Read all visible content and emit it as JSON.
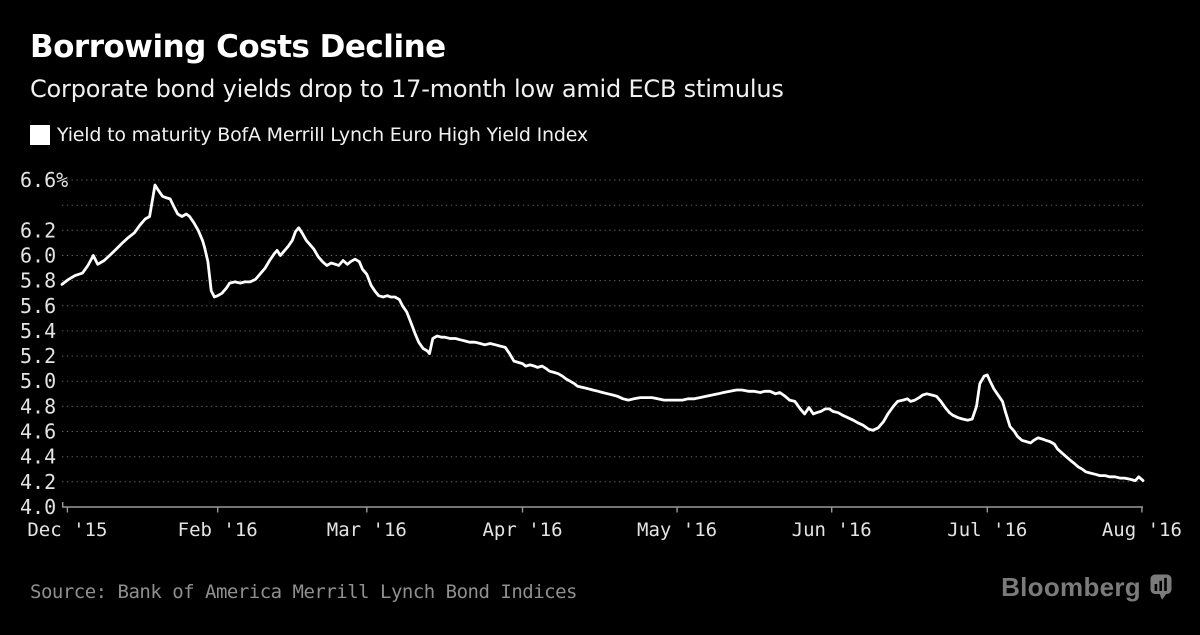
{
  "colors": {
    "background": "#000000",
    "line": "#ffffff",
    "gridline": "#5e5e5e",
    "axis": "#98999b",
    "tick_label": "#e3e3e3",
    "title": "#ffffff",
    "subtitle": "#f1f1f1",
    "legend_swatch": "#ffffff",
    "source_text": "#8f8f8f",
    "brand": "#7b7b7b"
  },
  "brand": {
    "name": "Bloomberg"
  },
  "chart_data": {
    "type": "line",
    "title": "Borrowing Costs Decline",
    "subtitle": "Corporate bond yields drop to 17-month low amid ECB stimulus",
    "legend_label": "Yield to maturity BofA Merrill Lynch Euro High Yield Index",
    "source": "Source: Bank of America Merrill Lynch Bond Indices",
    "unit": "%",
    "ylim": [
      4.0,
      6.6
    ],
    "grid": "dotted-horizontal",
    "legend_position": "top-left",
    "y_gridlines": [
      6.6,
      6.4,
      6.2,
      6.0,
      5.8,
      5.6,
      5.4,
      5.2,
      5.0,
      4.8,
      4.6,
      4.4,
      4.2
    ],
    "baseline": 4.0,
    "y_ticks": [
      {
        "v": 6.6,
        "label": "6.6%"
      },
      {
        "v": 6.2,
        "label": "6.2"
      },
      {
        "v": 6.0,
        "label": "6.0"
      },
      {
        "v": 5.8,
        "label": "5.8"
      },
      {
        "v": 5.6,
        "label": "5.6"
      },
      {
        "v": 5.4,
        "label": "5.4"
      },
      {
        "v": 5.2,
        "label": "5.2"
      },
      {
        "v": 5.0,
        "label": "5.0"
      },
      {
        "v": 4.8,
        "label": "4.8"
      },
      {
        "v": 4.6,
        "label": "4.6"
      },
      {
        "v": 4.4,
        "label": "4.4"
      },
      {
        "v": 4.2,
        "label": "4.2"
      },
      {
        "v": 4.0,
        "label": "4.0"
      }
    ],
    "x_ticks": [
      {
        "f": 0.005,
        "label": "Dec '15"
      },
      {
        "f": 0.144,
        "label": "Feb '16"
      },
      {
        "f": 0.282,
        "label": "Mar '16"
      },
      {
        "f": 0.426,
        "label": "Apr '16"
      },
      {
        "f": 0.569,
        "label": "May '16"
      },
      {
        "f": 0.712,
        "label": "Jun '16"
      },
      {
        "f": 0.856,
        "label": "Jul '16"
      },
      {
        "f": 0.999,
        "label": "Aug '16"
      }
    ],
    "points": [
      [
        0.0,
        5.77
      ],
      [
        0.006,
        5.81
      ],
      [
        0.012,
        5.84
      ],
      [
        0.019,
        5.86
      ],
      [
        0.024,
        5.92
      ],
      [
        0.029,
        6.0
      ],
      [
        0.033,
        5.93
      ],
      [
        0.039,
        5.96
      ],
      [
        0.044,
        6.0
      ],
      [
        0.05,
        6.05
      ],
      [
        0.056,
        6.1
      ],
      [
        0.061,
        6.14
      ],
      [
        0.067,
        6.18
      ],
      [
        0.072,
        6.24
      ],
      [
        0.077,
        6.29
      ],
      [
        0.081,
        6.31
      ],
      [
        0.086,
        6.56
      ],
      [
        0.089,
        6.52
      ],
      [
        0.093,
        6.47
      ],
      [
        0.096,
        6.46
      ],
      [
        0.1,
        6.45
      ],
      [
        0.104,
        6.38
      ],
      [
        0.107,
        6.33
      ],
      [
        0.111,
        6.31
      ],
      [
        0.115,
        6.33
      ],
      [
        0.118,
        6.31
      ],
      [
        0.122,
        6.26
      ],
      [
        0.126,
        6.2
      ],
      [
        0.13,
        6.12
      ],
      [
        0.132,
        6.06
      ],
      [
        0.135,
        5.95
      ],
      [
        0.138,
        5.72
      ],
      [
        0.141,
        5.67
      ],
      [
        0.144,
        5.68
      ],
      [
        0.148,
        5.7
      ],
      [
        0.152,
        5.74
      ],
      [
        0.155,
        5.78
      ],
      [
        0.16,
        5.79
      ],
      [
        0.165,
        5.78
      ],
      [
        0.169,
        5.79
      ],
      [
        0.174,
        5.79
      ],
      [
        0.179,
        5.81
      ],
      [
        0.183,
        5.85
      ],
      [
        0.188,
        5.9
      ],
      [
        0.192,
        5.96
      ],
      [
        0.196,
        6.01
      ],
      [
        0.199,
        6.04
      ],
      [
        0.202,
        6.0
      ],
      [
        0.205,
        6.03
      ],
      [
        0.209,
        6.07
      ],
      [
        0.213,
        6.12
      ],
      [
        0.216,
        6.19
      ],
      [
        0.219,
        6.22
      ],
      [
        0.222,
        6.18
      ],
      [
        0.226,
        6.12
      ],
      [
        0.229,
        6.09
      ],
      [
        0.233,
        6.05
      ],
      [
        0.237,
        5.99
      ],
      [
        0.241,
        5.95
      ],
      [
        0.245,
        5.92
      ],
      [
        0.249,
        5.94
      ],
      [
        0.253,
        5.93
      ],
      [
        0.256,
        5.92
      ],
      [
        0.26,
        5.96
      ],
      [
        0.264,
        5.93
      ],
      [
        0.267,
        5.95
      ],
      [
        0.271,
        5.97
      ],
      [
        0.275,
        5.95
      ],
      [
        0.278,
        5.89
      ],
      [
        0.282,
        5.85
      ],
      [
        0.286,
        5.76
      ],
      [
        0.29,
        5.71
      ],
      [
        0.293,
        5.68
      ],
      [
        0.297,
        5.67
      ],
      [
        0.301,
        5.68
      ],
      [
        0.304,
        5.67
      ],
      [
        0.308,
        5.67
      ],
      [
        0.312,
        5.65
      ],
      [
        0.315,
        5.6
      ],
      [
        0.319,
        5.55
      ],
      [
        0.323,
        5.46
      ],
      [
        0.327,
        5.37
      ],
      [
        0.33,
        5.31
      ],
      [
        0.334,
        5.26
      ],
      [
        0.338,
        5.24
      ],
      [
        0.34,
        5.22
      ],
      [
        0.343,
        5.34
      ],
      [
        0.347,
        5.36
      ],
      [
        0.351,
        5.35
      ],
      [
        0.354,
        5.35
      ],
      [
        0.359,
        5.34
      ],
      [
        0.364,
        5.34
      ],
      [
        0.368,
        5.33
      ],
      [
        0.373,
        5.32
      ],
      [
        0.377,
        5.31
      ],
      [
        0.382,
        5.31
      ],
      [
        0.387,
        5.3
      ],
      [
        0.391,
        5.29
      ],
      [
        0.396,
        5.3
      ],
      [
        0.401,
        5.29
      ],
      [
        0.405,
        5.28
      ],
      [
        0.41,
        5.27
      ],
      [
        0.414,
        5.22
      ],
      [
        0.418,
        5.16
      ],
      [
        0.422,
        5.15
      ],
      [
        0.426,
        5.14
      ],
      [
        0.429,
        5.12
      ],
      [
        0.433,
        5.13
      ],
      [
        0.437,
        5.12
      ],
      [
        0.44,
        5.11
      ],
      [
        0.444,
        5.12
      ],
      [
        0.448,
        5.1
      ],
      [
        0.451,
        5.08
      ],
      [
        0.455,
        5.07
      ],
      [
        0.459,
        5.06
      ],
      [
        0.463,
        5.04
      ],
      [
        0.466,
        5.02
      ],
      [
        0.47,
        5.0
      ],
      [
        0.474,
        4.98
      ],
      [
        0.477,
        4.96
      ],
      [
        0.482,
        4.95
      ],
      [
        0.487,
        4.94
      ],
      [
        0.491,
        4.93
      ],
      [
        0.496,
        4.92
      ],
      [
        0.5,
        4.91
      ],
      [
        0.505,
        4.9
      ],
      [
        0.51,
        4.89
      ],
      [
        0.514,
        4.88
      ],
      [
        0.519,
        4.86
      ],
      [
        0.524,
        4.85
      ],
      [
        0.529,
        4.86
      ],
      [
        0.535,
        4.87
      ],
      [
        0.54,
        4.87
      ],
      [
        0.546,
        4.87
      ],
      [
        0.551,
        4.86
      ],
      [
        0.557,
        4.85
      ],
      [
        0.562,
        4.85
      ],
      [
        0.568,
        4.85
      ],
      [
        0.574,
        4.85
      ],
      [
        0.579,
        4.86
      ],
      [
        0.585,
        4.86
      ],
      [
        0.59,
        4.87
      ],
      [
        0.596,
        4.88
      ],
      [
        0.601,
        4.89
      ],
      [
        0.607,
        4.9
      ],
      [
        0.612,
        4.91
      ],
      [
        0.618,
        4.92
      ],
      [
        0.624,
        4.93
      ],
      [
        0.629,
        4.93
      ],
      [
        0.635,
        4.92
      ],
      [
        0.64,
        4.92
      ],
      [
        0.646,
        4.91
      ],
      [
        0.65,
        4.92
      ],
      [
        0.655,
        4.92
      ],
      [
        0.66,
        4.9
      ],
      [
        0.664,
        4.91
      ],
      [
        0.669,
        4.88
      ],
      [
        0.673,
        4.85
      ],
      [
        0.678,
        4.84
      ],
      [
        0.683,
        4.78
      ],
      [
        0.687,
        4.74
      ],
      [
        0.691,
        4.79
      ],
      [
        0.695,
        4.74
      ],
      [
        0.698,
        4.75
      ],
      [
        0.702,
        4.76
      ],
      [
        0.706,
        4.78
      ],
      [
        0.71,
        4.78
      ],
      [
        0.713,
        4.76
      ],
      [
        0.718,
        4.75
      ],
      [
        0.722,
        4.73
      ],
      [
        0.727,
        4.71
      ],
      [
        0.732,
        4.69
      ],
      [
        0.736,
        4.67
      ],
      [
        0.741,
        4.65
      ],
      [
        0.746,
        4.62
      ],
      [
        0.75,
        4.61
      ],
      [
        0.755,
        4.63
      ],
      [
        0.76,
        4.68
      ],
      [
        0.764,
        4.74
      ],
      [
        0.769,
        4.8
      ],
      [
        0.773,
        4.84
      ],
      [
        0.778,
        4.85
      ],
      [
        0.782,
        4.86
      ],
      [
        0.785,
        4.84
      ],
      [
        0.789,
        4.85
      ],
      [
        0.793,
        4.87
      ],
      [
        0.796,
        4.89
      ],
      [
        0.8,
        4.9
      ],
      [
        0.805,
        4.89
      ],
      [
        0.809,
        4.88
      ],
      [
        0.813,
        4.84
      ],
      [
        0.817,
        4.79
      ],
      [
        0.821,
        4.75
      ],
      [
        0.824,
        4.73
      ],
      [
        0.829,
        4.71
      ],
      [
        0.833,
        4.7
      ],
      [
        0.838,
        4.69
      ],
      [
        0.842,
        4.7
      ],
      [
        0.846,
        4.8
      ],
      [
        0.849,
        4.98
      ],
      [
        0.853,
        5.04
      ],
      [
        0.856,
        5.05
      ],
      [
        0.858,
        5.01
      ],
      [
        0.862,
        4.94
      ],
      [
        0.866,
        4.89
      ],
      [
        0.87,
        4.84
      ],
      [
        0.873,
        4.75
      ],
      [
        0.877,
        4.64
      ],
      [
        0.881,
        4.6
      ],
      [
        0.884,
        4.56
      ],
      [
        0.888,
        4.53
      ],
      [
        0.892,
        4.52
      ],
      [
        0.896,
        4.51
      ],
      [
        0.899,
        4.53
      ],
      [
        0.903,
        4.55
      ],
      [
        0.907,
        4.54
      ],
      [
        0.91,
        4.53
      ],
      [
        0.914,
        4.52
      ],
      [
        0.918,
        4.5
      ],
      [
        0.921,
        4.46
      ],
      [
        0.925,
        4.43
      ],
      [
        0.929,
        4.4
      ],
      [
        0.933,
        4.37
      ],
      [
        0.936,
        4.35
      ],
      [
        0.94,
        4.32
      ],
      [
        0.944,
        4.3
      ],
      [
        0.947,
        4.28
      ],
      [
        0.951,
        4.27
      ],
      [
        0.956,
        4.26
      ],
      [
        0.96,
        4.25
      ],
      [
        0.965,
        4.25
      ],
      [
        0.969,
        4.24
      ],
      [
        0.974,
        4.24
      ],
      [
        0.979,
        4.23
      ],
      [
        0.983,
        4.23
      ],
      [
        0.988,
        4.22
      ],
      [
        0.993,
        4.21
      ],
      [
        0.996,
        4.24
      ],
      [
        1.0,
        4.21
      ]
    ]
  }
}
